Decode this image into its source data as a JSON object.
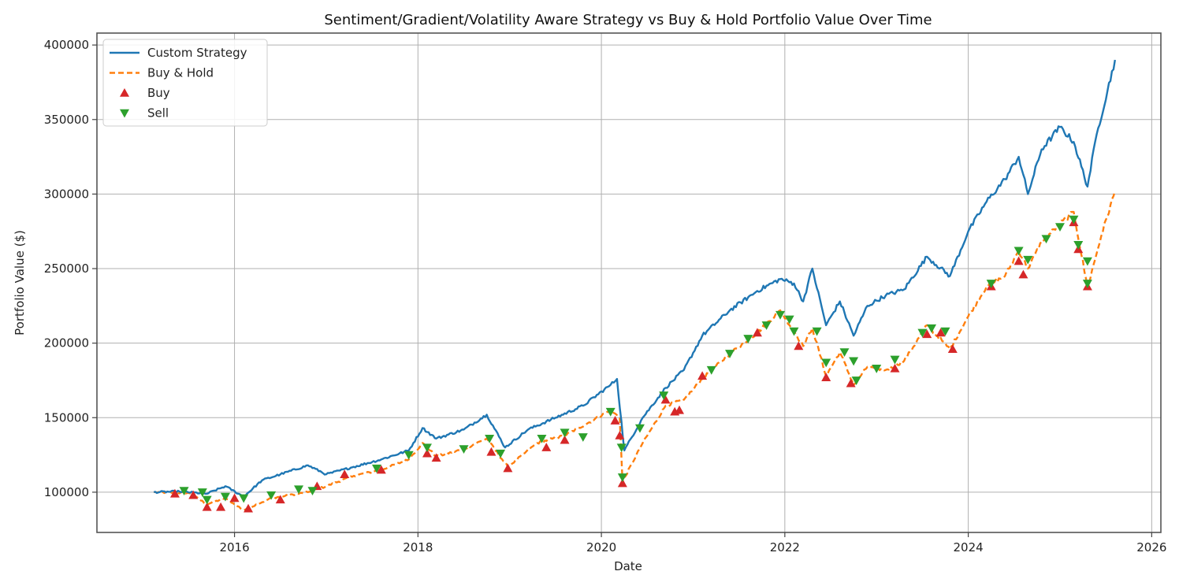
{
  "chart_data": {
    "type": "line",
    "title": "Sentiment/Gradient/Volatility Aware Strategy vs Buy & Hold Portfolio Value Over Time",
    "xlabel": "Date",
    "ylabel": "Portfolio Value ($)",
    "xlim": [
      2014.5,
      2026.1
    ],
    "ylim": [
      73000,
      408000
    ],
    "xticks": [
      2016,
      2018,
      2020,
      2022,
      2024,
      2026
    ],
    "xtick_labels": [
      "2016",
      "2018",
      "2020",
      "2022",
      "2024",
      "2026"
    ],
    "yticks": [
      100000,
      150000,
      200000,
      250000,
      300000,
      350000,
      400000
    ],
    "ytick_labels": [
      "100000",
      "150000",
      "200000",
      "250000",
      "300000",
      "350000",
      "400000"
    ],
    "grid": true,
    "legend_position": "top-left",
    "colors": {
      "custom": "#1f77b4",
      "buyhold": "#ff7f0e",
      "buy": "#d62728",
      "sell": "#2ca02c",
      "grid": "#b0b0b0"
    },
    "series": [
      {
        "name": "Custom Strategy",
        "style": "solid",
        "points": [
          [
            2015.12,
            100000
          ],
          [
            2015.4,
            100500
          ],
          [
            2015.7,
            99000
          ],
          [
            2015.9,
            104000
          ],
          [
            2016.1,
            97000
          ],
          [
            2016.3,
            108000
          ],
          [
            2016.5,
            112000
          ],
          [
            2016.8,
            118000
          ],
          [
            2017.0,
            112000
          ],
          [
            2017.3,
            117000
          ],
          [
            2017.6,
            122000
          ],
          [
            2017.9,
            128000
          ],
          [
            2018.05,
            143000
          ],
          [
            2018.2,
            136000
          ],
          [
            2018.5,
            142000
          ],
          [
            2018.75,
            152000
          ],
          [
            2018.95,
            130000
          ],
          [
            2019.2,
            142000
          ],
          [
            2019.5,
            150000
          ],
          [
            2019.8,
            158000
          ],
          [
            2020.1,
            172000
          ],
          [
            2020.17,
            176000
          ],
          [
            2020.25,
            128000
          ],
          [
            2020.45,
            150000
          ],
          [
            2020.7,
            170000
          ],
          [
            2020.9,
            182000
          ],
          [
            2021.1,
            205000
          ],
          [
            2021.4,
            222000
          ],
          [
            2021.7,
            235000
          ],
          [
            2021.95,
            243000
          ],
          [
            2022.1,
            240000
          ],
          [
            2022.2,
            228000
          ],
          [
            2022.3,
            250000
          ],
          [
            2022.45,
            212000
          ],
          [
            2022.6,
            228000
          ],
          [
            2022.75,
            205000
          ],
          [
            2022.9,
            225000
          ],
          [
            2023.1,
            232000
          ],
          [
            2023.3,
            236000
          ],
          [
            2023.55,
            258000
          ],
          [
            2023.8,
            245000
          ],
          [
            2024.0,
            275000
          ],
          [
            2024.2,
            295000
          ],
          [
            2024.4,
            310000
          ],
          [
            2024.55,
            325000
          ],
          [
            2024.65,
            300000
          ],
          [
            2024.8,
            330000
          ],
          [
            2025.0,
            345000
          ],
          [
            2025.15,
            335000
          ],
          [
            2025.3,
            305000
          ],
          [
            2025.4,
            340000
          ],
          [
            2025.6,
            390000
          ]
        ]
      },
      {
        "name": "Buy & Hold",
        "style": "dashed",
        "points": [
          [
            2015.12,
            100000
          ],
          [
            2015.5,
            99500
          ],
          [
            2015.7,
            92000
          ],
          [
            2015.9,
            96000
          ],
          [
            2016.1,
            88000
          ],
          [
            2016.4,
            96000
          ],
          [
            2016.8,
            100000
          ],
          [
            2017.0,
            104000
          ],
          [
            2017.3,
            111000
          ],
          [
            2017.6,
            115000
          ],
          [
            2017.9,
            122000
          ],
          [
            2018.05,
            133000
          ],
          [
            2018.2,
            124000
          ],
          [
            2018.5,
            129000
          ],
          [
            2018.75,
            136000
          ],
          [
            2018.98,
            117000
          ],
          [
            2019.3,
            133000
          ],
          [
            2019.6,
            138000
          ],
          [
            2019.9,
            148000
          ],
          [
            2020.1,
            155000
          ],
          [
            2020.2,
            150000
          ],
          [
            2020.23,
            107000
          ],
          [
            2020.45,
            133000
          ],
          [
            2020.7,
            158000
          ],
          [
            2020.9,
            162000
          ],
          [
            2021.1,
            176000
          ],
          [
            2021.4,
            193000
          ],
          [
            2021.7,
            207000
          ],
          [
            2021.95,
            222000
          ],
          [
            2022.1,
            208000
          ],
          [
            2022.2,
            198000
          ],
          [
            2022.3,
            210000
          ],
          [
            2022.45,
            178000
          ],
          [
            2022.6,
            194000
          ],
          [
            2022.75,
            172000
          ],
          [
            2022.9,
            184000
          ],
          [
            2023.1,
            182000
          ],
          [
            2023.3,
            188000
          ],
          [
            2023.55,
            212000
          ],
          [
            2023.8,
            196000
          ],
          [
            2024.0,
            218000
          ],
          [
            2024.2,
            238000
          ],
          [
            2024.4,
            245000
          ],
          [
            2024.55,
            262000
          ],
          [
            2024.65,
            250000
          ],
          [
            2024.8,
            268000
          ],
          [
            2025.0,
            280000
          ],
          [
            2025.15,
            288000
          ],
          [
            2025.3,
            237000
          ],
          [
            2025.45,
            272000
          ],
          [
            2025.6,
            302000
          ]
        ]
      },
      {
        "name": "Buy",
        "marker": "triangle-up",
        "points": [
          [
            2015.35,
            99000
          ],
          [
            2015.55,
            98000
          ],
          [
            2015.7,
            90000
          ],
          [
            2015.85,
            90000
          ],
          [
            2016.0,
            96000
          ],
          [
            2016.15,
            89000
          ],
          [
            2016.5,
            95000
          ],
          [
            2016.9,
            104000
          ],
          [
            2017.2,
            112000
          ],
          [
            2017.6,
            115000
          ],
          [
            2018.1,
            126000
          ],
          [
            2018.2,
            123000
          ],
          [
            2018.8,
            127000
          ],
          [
            2018.98,
            116000
          ],
          [
            2019.4,
            130000
          ],
          [
            2019.6,
            135000
          ],
          [
            2020.15,
            148000
          ],
          [
            2020.2,
            138000
          ],
          [
            2020.23,
            106000
          ],
          [
            2020.7,
            162000
          ],
          [
            2020.8,
            154000
          ],
          [
            2020.85,
            155000
          ],
          [
            2021.1,
            178000
          ],
          [
            2021.7,
            207000
          ],
          [
            2022.15,
            198000
          ],
          [
            2022.45,
            177000
          ],
          [
            2022.72,
            173000
          ],
          [
            2023.2,
            183000
          ],
          [
            2023.55,
            206000
          ],
          [
            2023.7,
            207000
          ],
          [
            2023.83,
            196000
          ],
          [
            2024.25,
            238000
          ],
          [
            2024.55,
            255000
          ],
          [
            2024.6,
            246000
          ],
          [
            2025.15,
            281000
          ],
          [
            2025.2,
            263000
          ],
          [
            2025.3,
            238000
          ]
        ]
      },
      {
        "name": "Sell",
        "marker": "triangle-down",
        "points": [
          [
            2015.45,
            101000
          ],
          [
            2015.65,
            100000
          ],
          [
            2015.7,
            95000
          ],
          [
            2015.9,
            97000
          ],
          [
            2016.1,
            96000
          ],
          [
            2016.4,
            98000
          ],
          [
            2016.7,
            102000
          ],
          [
            2016.85,
            101000
          ],
          [
            2017.55,
            116000
          ],
          [
            2017.9,
            125000
          ],
          [
            2018.1,
            130000
          ],
          [
            2018.5,
            129000
          ],
          [
            2018.78,
            136000
          ],
          [
            2018.9,
            126000
          ],
          [
            2019.35,
            136000
          ],
          [
            2019.6,
            140000
          ],
          [
            2019.8,
            137000
          ],
          [
            2020.1,
            154000
          ],
          [
            2020.22,
            130000
          ],
          [
            2020.23,
            110000
          ],
          [
            2020.42,
            143000
          ],
          [
            2020.68,
            165000
          ],
          [
            2021.2,
            182000
          ],
          [
            2021.4,
            193000
          ],
          [
            2021.6,
            203000
          ],
          [
            2021.8,
            212000
          ],
          [
            2021.95,
            219000
          ],
          [
            2022.05,
            216000
          ],
          [
            2022.1,
            208000
          ],
          [
            2022.35,
            208000
          ],
          [
            2022.45,
            187000
          ],
          [
            2022.65,
            194000
          ],
          [
            2022.75,
            188000
          ],
          [
            2022.78,
            175000
          ],
          [
            2023.0,
            183000
          ],
          [
            2023.2,
            189000
          ],
          [
            2023.5,
            207000
          ],
          [
            2023.6,
            210000
          ],
          [
            2023.75,
            208000
          ],
          [
            2024.25,
            240000
          ],
          [
            2024.55,
            262000
          ],
          [
            2024.65,
            256000
          ],
          [
            2024.85,
            270000
          ],
          [
            2025.0,
            278000
          ],
          [
            2025.15,
            283000
          ],
          [
            2025.2,
            266000
          ],
          [
            2025.3,
            255000
          ],
          [
            2025.3,
            240000
          ]
        ]
      }
    ]
  }
}
